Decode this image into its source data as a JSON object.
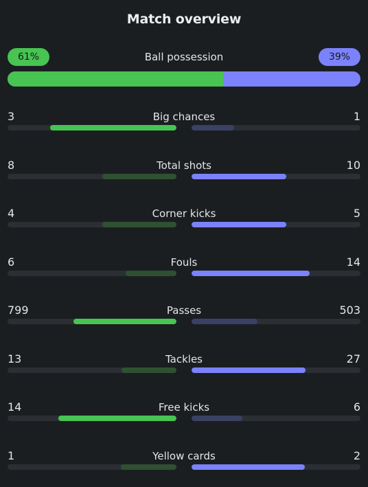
{
  "title": "Match overview",
  "possession": {
    "label": "Ball possession",
    "home": "61%",
    "away": "39%",
    "home_fraction": 0.61
  },
  "colors": {
    "home": "#47c452",
    "away": "#7b82fb",
    "background": "#1b1e21"
  },
  "stats": [
    {
      "label": "Big chances",
      "home": "3",
      "away": "1",
      "home_fill": 0.75,
      "away_fill": 0.25
    },
    {
      "label": "Total shots",
      "home": "8",
      "away": "10",
      "home_fill": 0.44,
      "away_fill": 0.56
    },
    {
      "label": "Corner kicks",
      "home": "4",
      "away": "5",
      "home_fill": 0.44,
      "away_fill": 0.56
    },
    {
      "label": "Fouls",
      "home": "6",
      "away": "14",
      "home_fill": 0.3,
      "away_fill": 0.7
    },
    {
      "label": "Passes",
      "home": "799",
      "away": "503",
      "home_fill": 0.61,
      "away_fill": 0.39
    },
    {
      "label": "Tackles",
      "home": "13",
      "away": "27",
      "home_fill": 0.325,
      "away_fill": 0.675
    },
    {
      "label": "Free kicks",
      "home": "14",
      "away": "6",
      "home_fill": 0.7,
      "away_fill": 0.3
    },
    {
      "label": "Yellow cards",
      "home": "1",
      "away": "2",
      "home_fill": 0.33,
      "away_fill": 0.67
    }
  ]
}
